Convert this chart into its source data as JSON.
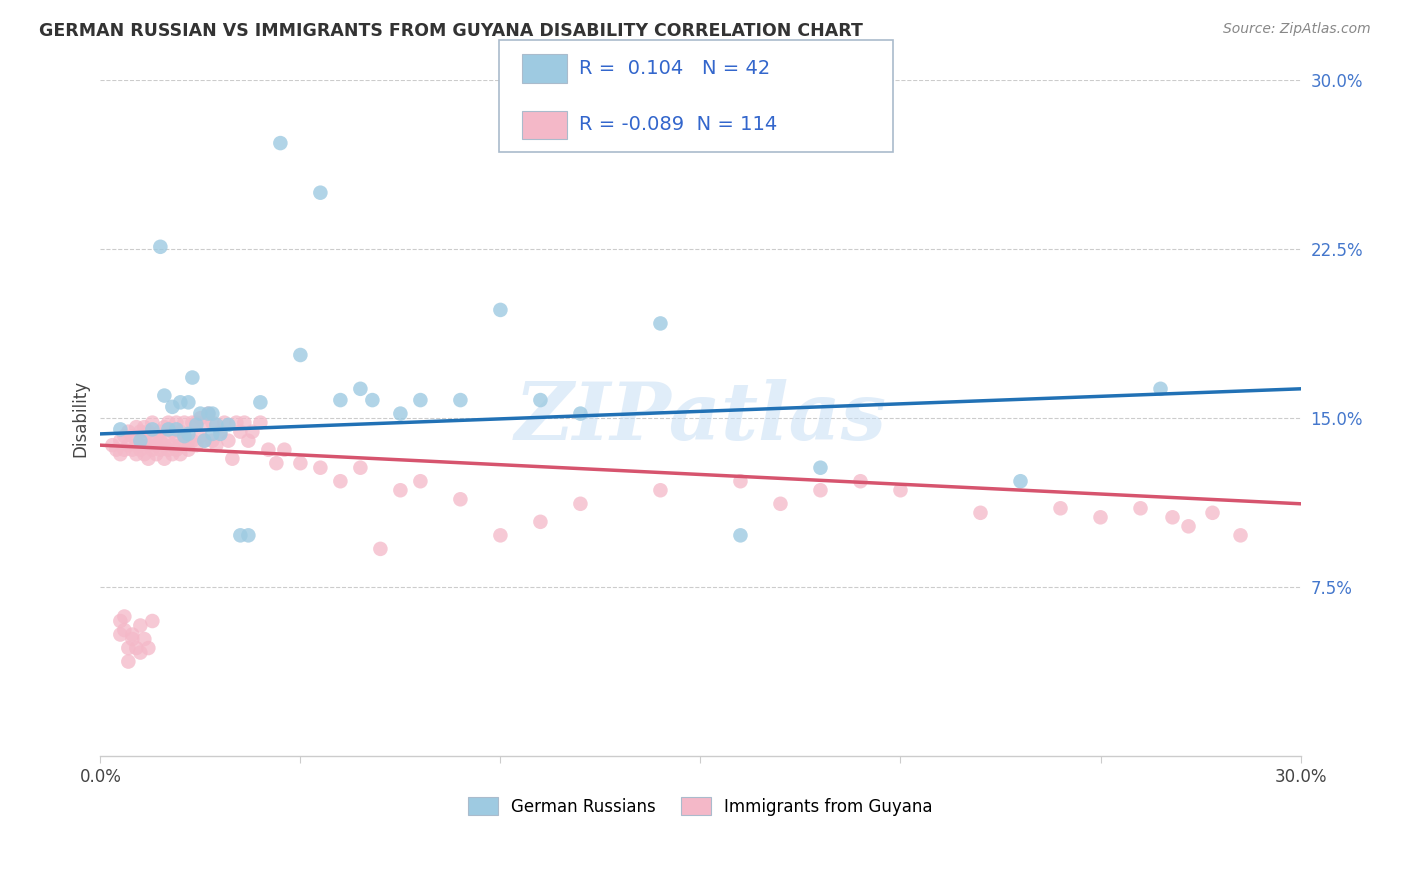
{
  "title": "GERMAN RUSSIAN VS IMMIGRANTS FROM GUYANA DISABILITY CORRELATION CHART",
  "source": "Source: ZipAtlas.com",
  "ylabel": "Disability",
  "xmin": 0.0,
  "xmax": 0.3,
  "ymin": 0.0,
  "ymax": 0.3,
  "ytick_positions": [
    0.075,
    0.15,
    0.225,
    0.3
  ],
  "ytick_labels": [
    "7.5%",
    "15.0%",
    "22.5%",
    "30.0%"
  ],
  "xtick_positions": [
    0.0,
    0.05,
    0.1,
    0.15,
    0.2,
    0.25,
    0.3
  ],
  "xtick_labels": [
    "0.0%",
    "",
    "",
    "",
    "",
    "",
    "30.0%"
  ],
  "blue_R": "0.104",
  "blue_N": "42",
  "pink_R": "-0.089",
  "pink_N": "114",
  "blue_scatter_color": "#9ecae1",
  "pink_scatter_color": "#f4b8c8",
  "blue_line_color": "#2171b5",
  "pink_line_color": "#d6546e",
  "legend_label_blue": "German Russians",
  "legend_label_pink": "Immigrants from Guyana",
  "watermark": "ZIPatlas",
  "blue_line_start_y": 0.143,
  "blue_line_end_y": 0.163,
  "pink_line_start_y": 0.138,
  "pink_line_end_y": 0.112,
  "blue_x": [
    0.005,
    0.01,
    0.013,
    0.015,
    0.016,
    0.017,
    0.018,
    0.019,
    0.02,
    0.021,
    0.022,
    0.022,
    0.023,
    0.024,
    0.025,
    0.026,
    0.027,
    0.028,
    0.028,
    0.029,
    0.03,
    0.032,
    0.035,
    0.037,
    0.04,
    0.045,
    0.05,
    0.055,
    0.06,
    0.065,
    0.068,
    0.075,
    0.08,
    0.09,
    0.1,
    0.11,
    0.12,
    0.14,
    0.16,
    0.18,
    0.23,
    0.265
  ],
  "blue_y": [
    0.145,
    0.14,
    0.145,
    0.226,
    0.16,
    0.145,
    0.155,
    0.145,
    0.157,
    0.142,
    0.143,
    0.157,
    0.168,
    0.147,
    0.152,
    0.14,
    0.152,
    0.143,
    0.152,
    0.147,
    0.143,
    0.147,
    0.098,
    0.098,
    0.157,
    0.272,
    0.178,
    0.25,
    0.158,
    0.163,
    0.158,
    0.152,
    0.158,
    0.158,
    0.198,
    0.158,
    0.152,
    0.192,
    0.098,
    0.128,
    0.122,
    0.163
  ],
  "pink_x": [
    0.003,
    0.004,
    0.005,
    0.005,
    0.006,
    0.006,
    0.007,
    0.007,
    0.008,
    0.008,
    0.009,
    0.009,
    0.009,
    0.01,
    0.01,
    0.01,
    0.011,
    0.011,
    0.011,
    0.012,
    0.012,
    0.012,
    0.013,
    0.013,
    0.013,
    0.014,
    0.014,
    0.014,
    0.015,
    0.015,
    0.015,
    0.016,
    0.016,
    0.016,
    0.017,
    0.017,
    0.017,
    0.018,
    0.018,
    0.018,
    0.019,
    0.019,
    0.019,
    0.02,
    0.02,
    0.02,
    0.021,
    0.021,
    0.022,
    0.022,
    0.023,
    0.023,
    0.024,
    0.024,
    0.025,
    0.025,
    0.026,
    0.026,
    0.027,
    0.028,
    0.028,
    0.029,
    0.03,
    0.031,
    0.032,
    0.033,
    0.034,
    0.035,
    0.036,
    0.037,
    0.038,
    0.04,
    0.042,
    0.044,
    0.046,
    0.05,
    0.055,
    0.06,
    0.065,
    0.07,
    0.075,
    0.08,
    0.09,
    0.1,
    0.11,
    0.12,
    0.14,
    0.16,
    0.17,
    0.18,
    0.19,
    0.2,
    0.22,
    0.24,
    0.25,
    0.26,
    0.268,
    0.272,
    0.278,
    0.285,
    0.005,
    0.005,
    0.006,
    0.006,
    0.007,
    0.007,
    0.008,
    0.008,
    0.009,
    0.01,
    0.01,
    0.011,
    0.012,
    0.013
  ],
  "pink_y": [
    0.138,
    0.136,
    0.14,
    0.134,
    0.142,
    0.136,
    0.138,
    0.144,
    0.142,
    0.136,
    0.14,
    0.134,
    0.146,
    0.138,
    0.144,
    0.136,
    0.14,
    0.134,
    0.146,
    0.138,
    0.132,
    0.144,
    0.14,
    0.136,
    0.148,
    0.138,
    0.134,
    0.142,
    0.14,
    0.136,
    0.144,
    0.138,
    0.132,
    0.146,
    0.14,
    0.136,
    0.148,
    0.138,
    0.134,
    0.144,
    0.142,
    0.136,
    0.148,
    0.138,
    0.134,
    0.144,
    0.14,
    0.148,
    0.14,
    0.136,
    0.148,
    0.14,
    0.138,
    0.148,
    0.15,
    0.142,
    0.148,
    0.14,
    0.152,
    0.148,
    0.14,
    0.138,
    0.144,
    0.148,
    0.14,
    0.132,
    0.148,
    0.144,
    0.148,
    0.14,
    0.144,
    0.148,
    0.136,
    0.13,
    0.136,
    0.13,
    0.128,
    0.122,
    0.128,
    0.092,
    0.118,
    0.122,
    0.114,
    0.098,
    0.104,
    0.112,
    0.118,
    0.122,
    0.112,
    0.118,
    0.122,
    0.118,
    0.108,
    0.11,
    0.106,
    0.11,
    0.106,
    0.102,
    0.108,
    0.098,
    0.054,
    0.06,
    0.056,
    0.062,
    0.042,
    0.048,
    0.054,
    0.052,
    0.048,
    0.058,
    0.046,
    0.052,
    0.048,
    0.06
  ]
}
